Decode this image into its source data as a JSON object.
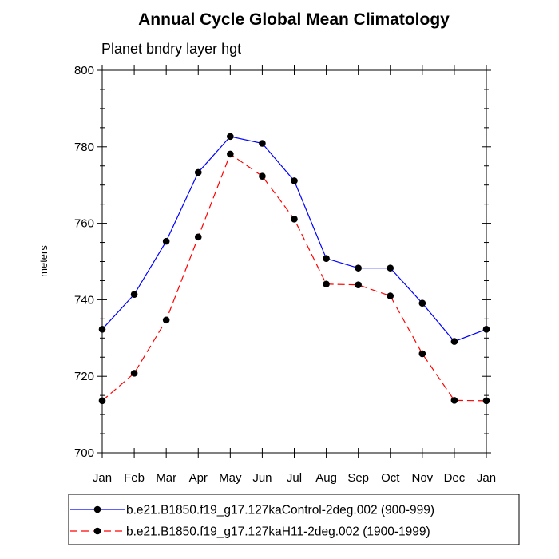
{
  "chart_data": {
    "type": "line",
    "title": "Annual Cycle Global Mean Climatology",
    "subtitle": "Planet bndry layer hgt",
    "xlabel": "",
    "ylabel": "meters",
    "categories": [
      "Jan",
      "Feb",
      "Mar",
      "Apr",
      "May",
      "Jun",
      "Jul",
      "Aug",
      "Sep",
      "Oct",
      "Nov",
      "Dec",
      "Jan"
    ],
    "ylim": [
      700,
      800
    ],
    "yticks": [
      700,
      720,
      740,
      760,
      780,
      800
    ],
    "grid": false,
    "legend_position": "bottom",
    "series": [
      {
        "name": "b.e21.B1850.f19_g17.127kaControl-2deg.002 (900-999)",
        "color": "#0000ff",
        "line_style": "solid",
        "marker": "filled-circle",
        "values": [
          732.3,
          741.4,
          755.3,
          773.3,
          782.7,
          780.9,
          771.1,
          750.8,
          748.3,
          748.3,
          739.1,
          729.1,
          732.3
        ]
      },
      {
        "name": "b.e21.B1850.f19_g17.127kaH11-2deg.002 (1900-1999)",
        "color": "#ff0000",
        "line_style": "dashed",
        "marker": "filled-circle",
        "values": [
          713.6,
          720.8,
          734.7,
          756.4,
          778.1,
          772.3,
          761.1,
          744.1,
          743.9,
          741.0,
          725.9,
          713.7,
          713.6
        ]
      }
    ]
  }
}
